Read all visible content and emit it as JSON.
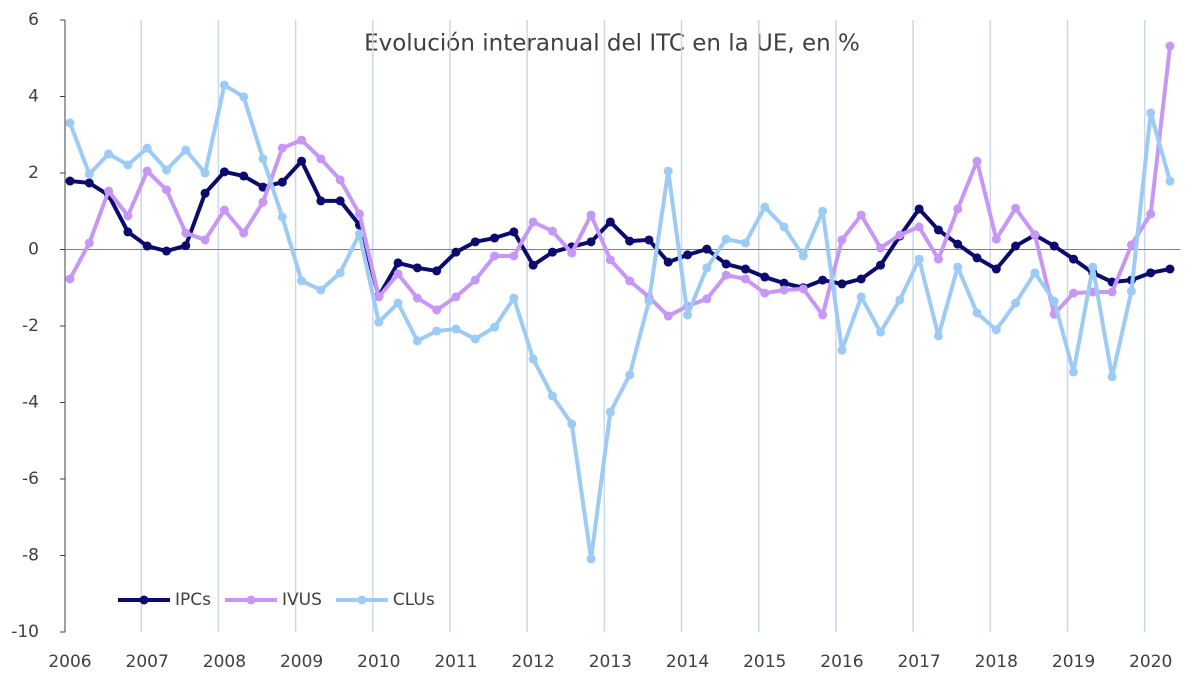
{
  "chart_data": {
    "type": "line",
    "title": "Evolución interanual del ITC en la UE, en %",
    "categories": [
      "2006",
      null,
      null,
      null,
      "2007",
      null,
      null,
      null,
      "2008",
      null,
      null,
      null,
      "2009",
      null,
      null,
      null,
      "2010",
      null,
      null,
      null,
      "2011",
      null,
      null,
      null,
      "2012",
      null,
      null,
      null,
      "2013",
      null,
      null,
      null,
      "2014",
      null,
      null,
      null,
      "2015",
      null,
      null,
      null,
      "2016",
      null,
      null,
      null,
      "2017",
      null,
      null,
      null,
      "2018",
      null,
      null,
      null,
      "2019",
      null,
      null,
      null,
      "2020",
      null
    ],
    "series": [
      {
        "name": "IPCs",
        "color": "#0b0b6e",
        "values": [
          1.79,
          1.74,
          1.42,
          0.46,
          0.09,
          -0.04,
          0.1,
          1.47,
          2.03,
          1.92,
          1.63,
          1.76,
          2.31,
          1.27,
          1.27,
          0.64,
          -1.22,
          -0.35,
          -0.48,
          -0.56,
          -0.07,
          0.2,
          0.3,
          0.46,
          -0.41,
          -0.07,
          0.07,
          0.2,
          0.72,
          0.22,
          0.25,
          -0.33,
          -0.14,
          0.01,
          -0.38,
          -0.51,
          -0.72,
          -0.88,
          -1.0,
          -0.8,
          -0.9,
          -0.77,
          -0.41,
          0.35,
          1.06,
          0.51,
          0.14,
          -0.22,
          -0.51,
          0.09,
          0.38,
          0.09,
          -0.25,
          -0.61,
          -0.85,
          -0.8,
          -0.61,
          -0.51
        ]
      },
      {
        "name": "IVUS",
        "color": "#c797f5",
        "values": [
          -0.77,
          0.17,
          1.53,
          0.88,
          2.05,
          1.56,
          0.43,
          0.25,
          1.03,
          0.43,
          1.24,
          2.65,
          2.86,
          2.37,
          1.82,
          0.93,
          -1.24,
          -0.64,
          -1.27,
          -1.58,
          -1.24,
          -0.8,
          -0.17,
          -0.17,
          0.72,
          0.48,
          -0.09,
          0.9,
          -0.27,
          -0.82,
          -1.24,
          -1.74,
          -1.48,
          -1.29,
          -0.67,
          -0.77,
          -1.14,
          -1.06,
          -1.03,
          -1.71,
          0.25,
          0.9,
          0.04,
          0.38,
          0.59,
          -0.25,
          1.06,
          2.31,
          0.27,
          1.08,
          0.38,
          -1.69,
          -1.14,
          -1.11,
          -1.11,
          0.12,
          0.93,
          5.32
        ]
      },
      {
        "name": "CLUs",
        "color": "#9ccbf5",
        "values": [
          3.31,
          1.97,
          2.5,
          2.21,
          2.65,
          2.08,
          2.6,
          2.0,
          4.3,
          3.99,
          2.37,
          0.85,
          -0.82,
          -1.06,
          -0.61,
          0.41,
          -1.9,
          -1.4,
          -2.39,
          -2.13,
          -2.08,
          -2.34,
          -2.03,
          -1.27,
          -2.86,
          -3.83,
          -4.56,
          -8.09,
          -4.25,
          -3.28,
          -1.35,
          2.05,
          -1.71,
          -0.48,
          0.27,
          0.17,
          1.11,
          0.59,
          -0.17,
          1.0,
          -2.63,
          -1.24,
          -2.16,
          -1.32,
          -0.25,
          -2.26,
          -0.46,
          -1.66,
          -2.1,
          -1.4,
          -0.61,
          -1.35,
          -3.2,
          -0.46,
          -3.33,
          -1.09,
          3.57,
          1.79
        ]
      }
    ],
    "ylim": [
      -10,
      6
    ],
    "yticks": [
      -10,
      -8,
      -6,
      -4,
      -2,
      0,
      2,
      4,
      6
    ],
    "legend": "lower left"
  }
}
